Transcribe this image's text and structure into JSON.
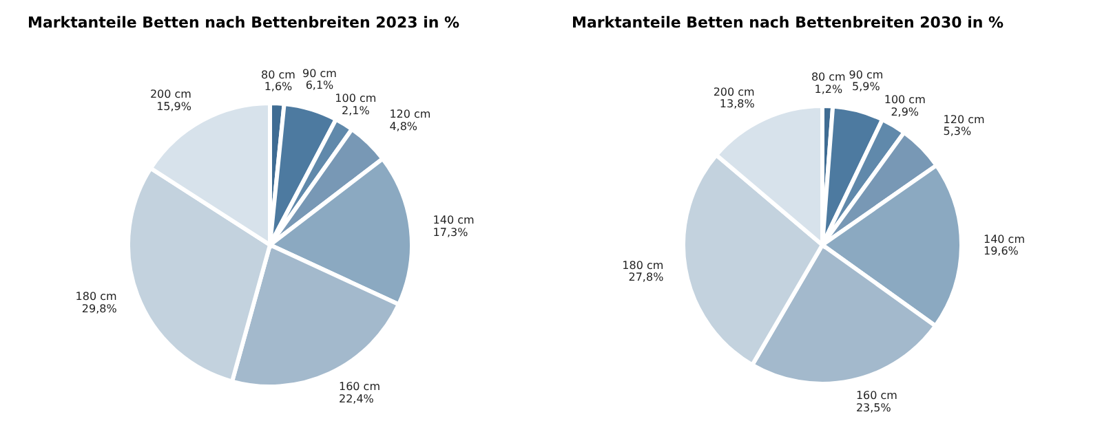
{
  "chart_data": [
    {
      "type": "pie",
      "title": "Marktanteile Betten nach Bettenbreiten 2023 in %",
      "categories": [
        "80 cm",
        "90 cm",
        "100 cm",
        "120 cm",
        "140 cm",
        "160 cm",
        "180 cm",
        "200 cm"
      ],
      "values": [
        1.6,
        6.1,
        2.1,
        4.8,
        17.3,
        22.4,
        29.8,
        15.9
      ],
      "value_labels": [
        "1,6%",
        "6,1%",
        "2,1%",
        "4,8%",
        "17,3%",
        "22,4%",
        "29,8%",
        "15,9%"
      ],
      "colors": [
        "#3f6c93",
        "#4d7aa0",
        "#6089ab",
        "#7898b5",
        "#8ba9c1",
        "#a3b9cc",
        "#c3d2de",
        "#d7e2eb"
      ]
    },
    {
      "type": "pie",
      "title": "Marktanteile Betten nach Bettenbreiten 2030 in %",
      "categories": [
        "80 cm",
        "90 cm",
        "100 cm",
        "120 cm",
        "140 cm",
        "160 cm",
        "180 cm",
        "200 cm"
      ],
      "values": [
        1.2,
        5.9,
        2.9,
        5.3,
        19.6,
        23.5,
        27.8,
        13.8
      ],
      "value_labels": [
        "1,2%",
        "5,9%",
        "2,9%",
        "5,3%",
        "19,6%",
        "23,5%",
        "27,8%",
        "13,8%"
      ],
      "colors": [
        "#3f6c93",
        "#4d7aa0",
        "#6089ab",
        "#7898b5",
        "#8ba9c1",
        "#a3b9cc",
        "#c3d2de",
        "#d7e2eb"
      ]
    }
  ]
}
